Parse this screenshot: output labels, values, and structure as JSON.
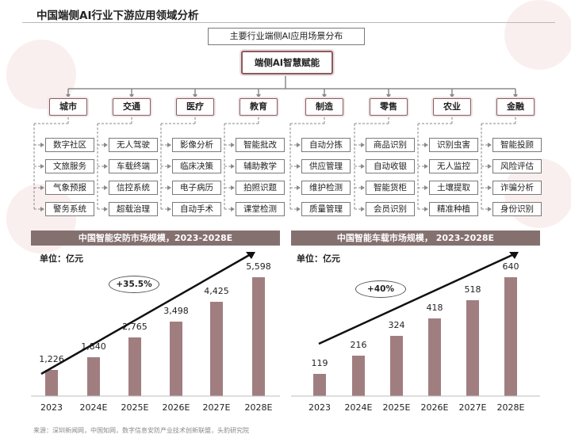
{
  "title": "中国端侧AI行业下游应用领域分析",
  "diagram": {
    "header": "主要行业端侧AI应用场景分布",
    "core": "端侧AI智慧赋能",
    "categories": [
      {
        "name": "城市",
        "items": [
          "数字社区",
          "文旅服务",
          "气象预报",
          "警务系统"
        ]
      },
      {
        "name": "交通",
        "items": [
          "无人驾驶",
          "车载终端",
          "信控系统",
          "超载治理"
        ]
      },
      {
        "name": "医疗",
        "items": [
          "影像分析",
          "临床决策",
          "电子病历",
          "自动手术"
        ]
      },
      {
        "name": "教育",
        "items": [
          "智能批改",
          "辅助教学",
          "拍照识题",
          "课堂检测"
        ]
      },
      {
        "name": "制造",
        "items": [
          "自动分拣",
          "供应管理",
          "维护检测",
          "质量管理"
        ]
      },
      {
        "name": "零售",
        "items": [
          "商品识别",
          "自动收银",
          "智能货柜",
          "会员识别"
        ]
      },
      {
        "name": "农业",
        "items": [
          "识别虫害",
          "无人监控",
          "土壤提取",
          "精准种植"
        ]
      },
      {
        "name": "金融",
        "items": [
          "智能投顾",
          "风险评估",
          "诈骗分析",
          "身份识别"
        ]
      }
    ]
  },
  "chart_data": [
    {
      "type": "bar",
      "title": "中国智能安防市场规模，2023-2028E",
      "unit": "单位：亿元",
      "categories": [
        "2023",
        "2024E",
        "2025E",
        "2026E",
        "2027E",
        "2028E"
      ],
      "values": [
        1226,
        1840,
        2765,
        3498,
        4425,
        5598
      ],
      "value_labels": [
        "1,226",
        "1,840",
        "2,765",
        "3,498",
        "4,425",
        "5,598"
      ],
      "annotation": "+35.5%",
      "ylim": [
        0,
        5598
      ],
      "grid": false
    },
    {
      "type": "bar",
      "title": "中国智能车载市场规模， 2023-2028E",
      "unit": "单位：亿元",
      "categories": [
        "2023",
        "2024E",
        "2025E",
        "2026E",
        "2027E",
        "2028E"
      ],
      "values": [
        119,
        216,
        324,
        418,
        518,
        640
      ],
      "value_labels": [
        "119",
        "216",
        "324",
        "418",
        "518",
        "640"
      ],
      "annotation": "+40%",
      "ylim": [
        0,
        640
      ],
      "grid": false
    }
  ],
  "source": "来源：深圳新闻网，中国知网，数字信息安防产业技术创新联盟，头豹研究院",
  "colors": {
    "bar": "#a07e80",
    "header": "#857070",
    "accent": "#8b5a5f"
  }
}
